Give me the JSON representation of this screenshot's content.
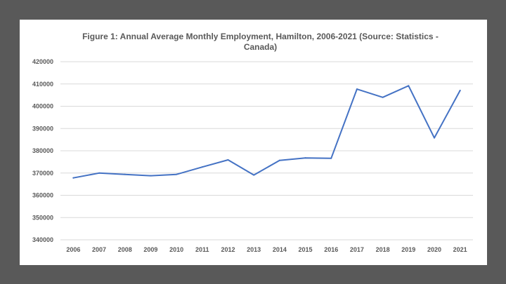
{
  "chart_data": {
    "type": "line",
    "title": "Figure 1: Annual Average Monthly Employment, Hamilton, 2006-2021 (Source: Statistics - Canada)",
    "xlabel": "",
    "ylabel": "",
    "ylim": [
      340000,
      420000
    ],
    "yticks": [
      340000,
      350000,
      360000,
      370000,
      380000,
      390000,
      400000,
      410000,
      420000
    ],
    "ytick_labels": [
      "340000",
      "350000",
      "360000",
      "370000",
      "380000",
      "390000",
      "400000",
      "410000",
      "420000"
    ],
    "grid": true,
    "legend": "none",
    "categories": [
      "2006",
      "2007",
      "2008",
      "2009",
      "2010",
      "2011",
      "2012",
      "2013",
      "2014",
      "2015",
      "2016",
      "2017",
      "2018",
      "2019",
      "2020",
      "2021"
    ],
    "series": [
      {
        "color": "#4472c4",
        "values": [
          367800,
          370000,
          369400,
          368800,
          369400,
          372700,
          375900,
          369100,
          375700,
          376800,
          376600,
          407700,
          404000,
          409200,
          385800,
          407100
        ]
      }
    ]
  }
}
